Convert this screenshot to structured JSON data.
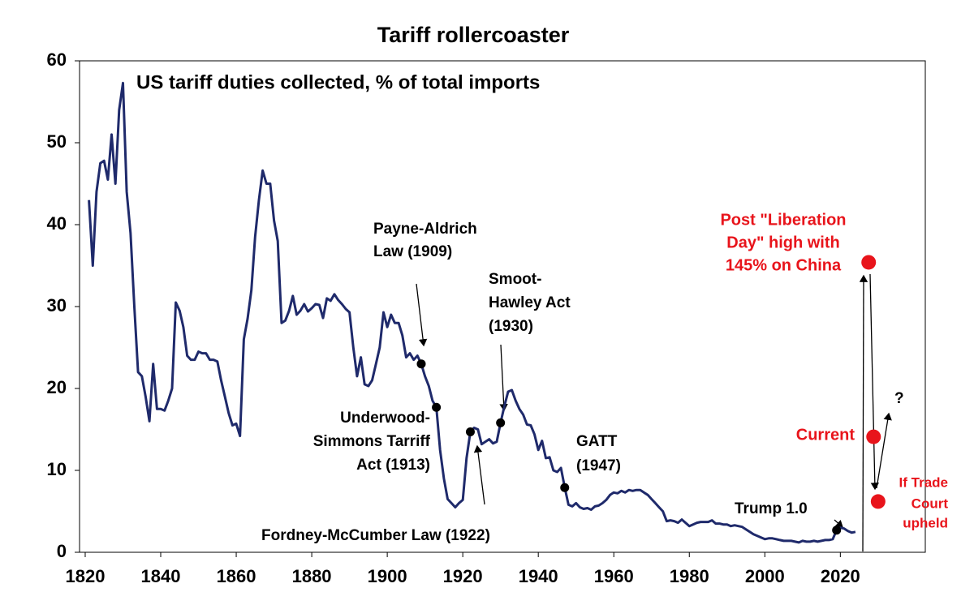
{
  "chart_data": {
    "type": "line",
    "title": "Tariff rollercoaster",
    "subtitle": "US tariff duties collected, % of total imports",
    "color": "#1f2a6b",
    "xlim": [
      1818.5,
      2042.5
    ],
    "xticks": [
      1820,
      1840,
      1860,
      1880,
      1900,
      1920,
      1940,
      1960,
      1980,
      2000,
      2020
    ],
    "ylim": [
      0,
      60
    ],
    "yticks": [
      0,
      10,
      20,
      30,
      40,
      50,
      60
    ],
    "x": [
      1821,
      1822,
      1823,
      1824,
      1825,
      1826,
      1827,
      1828,
      1829,
      1830,
      1831,
      1832,
      1833,
      1834,
      1835,
      1836,
      1837,
      1838,
      1839,
      1840,
      1841,
      1842,
      1843,
      1844,
      1845,
      1846,
      1847,
      1848,
      1849,
      1850,
      1851,
      1852,
      1853,
      1854,
      1855,
      1856,
      1857,
      1858,
      1859,
      1860,
      1861,
      1862,
      1863,
      1864,
      1865,
      1866,
      1867,
      1868,
      1869,
      1870,
      1871,
      1872,
      1873,
      1874,
      1875,
      1876,
      1877,
      1878,
      1879,
      1880,
      1881,
      1882,
      1883,
      1884,
      1885,
      1886,
      1887,
      1888,
      1889,
      1890,
      1891,
      1892,
      1893,
      1894,
      1895,
      1896,
      1897,
      1898,
      1899,
      1900,
      1901,
      1902,
      1903,
      1904,
      1905,
      1906,
      1907,
      1908,
      1909,
      1910,
      1911,
      1912,
      1913,
      1914,
      1915,
      1916,
      1917,
      1918,
      1919,
      1920,
      1921,
      1922,
      1923,
      1924,
      1925,
      1926,
      1927,
      1928,
      1929,
      1930,
      1931,
      1932,
      1933,
      1934,
      1935,
      1936,
      1937,
      1938,
      1939,
      1940,
      1941,
      1942,
      1943,
      1944,
      1945,
      1946,
      1947,
      1948,
      1949,
      1950,
      1951,
      1952,
      1953,
      1954,
      1955,
      1956,
      1957,
      1958,
      1959,
      1960,
      1961,
      1962,
      1963,
      1964,
      1965,
      1966,
      1967,
      1968,
      1969,
      1970,
      1971,
      1972,
      1973,
      1974,
      1975,
      1976,
      1977,
      1978,
      1979,
      1980,
      1981,
      1982,
      1983,
      1984,
      1985,
      1986,
      1987,
      1988,
      1989,
      1990,
      1991,
      1992,
      1993,
      1994,
      1995,
      1996,
      1997,
      1998,
      1999,
      2000,
      2001,
      2002,
      2003,
      2004,
      2005,
      2006,
      2007,
      2008,
      2009,
      2010,
      2011,
      2012,
      2013,
      2014,
      2015,
      2016,
      2017,
      2018,
      2019,
      2020,
      2021,
      2022,
      2023,
      2024
    ],
    "values": [
      43,
      35,
      44,
      47.5,
      47.8,
      45.5,
      51,
      45,
      54,
      57.3,
      44,
      39,
      30,
      22,
      21.5,
      19,
      16,
      23,
      17.5,
      17.5,
      17.3,
      18.5,
      20,
      30.5,
      29.5,
      27.5,
      24,
      23.5,
      23.5,
      24.5,
      24.3,
      24.3,
      23.5,
      23.5,
      23.3,
      21,
      19,
      17,
      15.5,
      15.7,
      14.2,
      26,
      28.5,
      32,
      38.5,
      43,
      46.6,
      45,
      45,
      40.5,
      38,
      28,
      28.3,
      29.5,
      31.3,
      29,
      29.5,
      30.3,
      29.4,
      29.8,
      30.3,
      30.2,
      28.6,
      31,
      30.7,
      31.5,
      30.8,
      30.3,
      29.7,
      29.3,
      25,
      21.5,
      23.8,
      20.5,
      20.3,
      21,
      23,
      25,
      29.3,
      27.5,
      29,
      28,
      28,
      26.5,
      23.8,
      24.3,
      23.5,
      24,
      23,
      21.5,
      20.3,
      18.5,
      17.7,
      12.5,
      9,
      6.5,
      6,
      5.5,
      6,
      6.4,
      11.5,
      14.7,
      15.2,
      15,
      13.2,
      13.5,
      13.8,
      13.3,
      13.5,
      15.8,
      17.8,
      19.6,
      19.8,
      18.5,
      17.5,
      16.8,
      15.6,
      15.5,
      14.4,
      12.5,
      13.6,
      11.5,
      11.6,
      10,
      9.8,
      10.3,
      7.9,
      5.8,
      5.6,
      6,
      5.5,
      5.3,
      5.4,
      5.2,
      5.6,
      5.7,
      6,
      6.4,
      7,
      7.3,
      7.2,
      7.5,
      7.3,
      7.6,
      7.5,
      7.6,
      7.6,
      7.3,
      7,
      6.5,
      6,
      5.5,
      5,
      3.8,
      3.9,
      3.8,
      3.6,
      4,
      3.6,
      3.2,
      3.4,
      3.6,
      3.7,
      3.7,
      3.7,
      3.9,
      3.5,
      3.5,
      3.4,
      3.4,
      3.2,
      3.3,
      3.2,
      3.1,
      2.8,
      2.5,
      2.2,
      2,
      1.8,
      1.6,
      1.7,
      1.7,
      1.6,
      1.5,
      1.4,
      1.4,
      1.4,
      1.3,
      1.2,
      1.4,
      1.3,
      1.3,
      1.4,
      1.3,
      1.4,
      1.5,
      1.5,
      1.6,
      2.7,
      3,
      2.9,
      2.6,
      2.4,
      2.5
    ],
    "annotations": [
      {
        "lines": [
          "Payne-Aldrich",
          "Law (1909)"
        ],
        "x": 1909,
        "y": 23
      },
      {
        "lines": [
          "Underwood-",
          "Simmons Tarriff",
          "Act (1913)"
        ],
        "x": 1913,
        "y": 17.7
      },
      {
        "lines": [
          "Fordney-McCumber Law (1922)"
        ],
        "x": 1922,
        "y": 14.7
      },
      {
        "lines": [
          "Smoot-",
          "Hawley Act",
          "(1930)"
        ],
        "x": 1930,
        "y": 15.8
      },
      {
        "lines": [
          "GATT",
          "(1947)"
        ],
        "x": 1947,
        "y": 7.9
      },
      {
        "lines": [
          "Trump 1.0"
        ],
        "x": 2019,
        "y": 2.7
      },
      {
        "lines": [
          "Post \"Liberation",
          "Day\" high with",
          "145% on China"
        ],
        "x": 2027.5,
        "y": 35.4,
        "color": "#e8141b"
      },
      {
        "lines": [
          "Current"
        ],
        "x": 2028.8,
        "y": 14.1,
        "color": "#e8141b"
      },
      {
        "lines": [
          "If Trade",
          "Court",
          "upheld"
        ],
        "x": 2030,
        "y": 6.2,
        "color": "#e8141b"
      },
      {
        "lines": [
          "?"
        ]
      }
    ]
  }
}
